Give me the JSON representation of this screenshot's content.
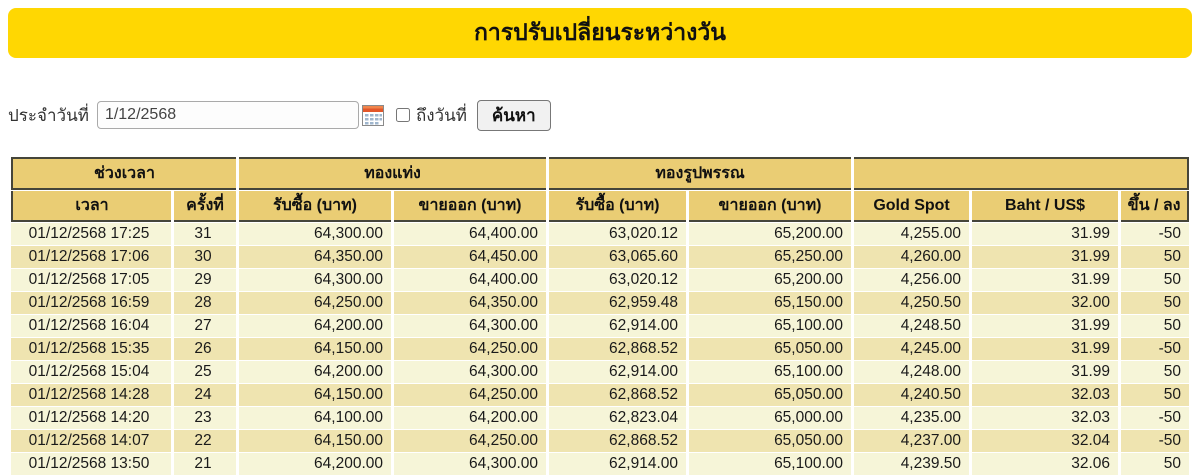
{
  "banner": {
    "title": "การปรับเปลี่ยนระหว่างวัน"
  },
  "search_form": {
    "date_label": "ประจำวันที่",
    "date_value": "1/12/2568",
    "to_date_label": "ถึงวันที่",
    "to_date_checked": false,
    "search_button_label": "ค้นหา"
  },
  "table": {
    "group_headers": [
      {
        "label": "ช่วงเวลา",
        "colspan": 2
      },
      {
        "label": "ทองแท่ง",
        "colspan": 2
      },
      {
        "label": "ทองรูปพรรณ",
        "colspan": 2
      },
      {
        "label": "",
        "colspan": 3
      }
    ],
    "columns": [
      "เวลา",
      "ครั้งที่",
      "รับซื้อ (บาท)",
      "ขายออก (บาท)",
      "รับซื้อ (บาท)",
      "ขายออก (บาท)",
      "Gold Spot",
      "Baht / US$",
      "ขึ้น / ลง"
    ],
    "rows": [
      [
        "01/12/2568 17:25",
        "31",
        "64,300.00",
        "64,400.00",
        "63,020.12",
        "65,200.00",
        "4,255.00",
        "31.99",
        "-50"
      ],
      [
        "01/12/2568 17:06",
        "30",
        "64,350.00",
        "64,450.00",
        "63,065.60",
        "65,250.00",
        "4,260.00",
        "31.99",
        "50"
      ],
      [
        "01/12/2568 17:05",
        "29",
        "64,300.00",
        "64,400.00",
        "63,020.12",
        "65,200.00",
        "4,256.00",
        "31.99",
        "50"
      ],
      [
        "01/12/2568 16:59",
        "28",
        "64,250.00",
        "64,350.00",
        "62,959.48",
        "65,150.00",
        "4,250.50",
        "32.00",
        "50"
      ],
      [
        "01/12/2568 16:04",
        "27",
        "64,200.00",
        "64,300.00",
        "62,914.00",
        "65,100.00",
        "4,248.50",
        "31.99",
        "50"
      ],
      [
        "01/12/2568 15:35",
        "26",
        "64,150.00",
        "64,250.00",
        "62,868.52",
        "65,050.00",
        "4,245.00",
        "31.99",
        "-50"
      ],
      [
        "01/12/2568 15:04",
        "25",
        "64,200.00",
        "64,300.00",
        "62,914.00",
        "65,100.00",
        "4,248.00",
        "31.99",
        "50"
      ],
      [
        "01/12/2568 14:28",
        "24",
        "64,150.00",
        "64,250.00",
        "62,868.52",
        "65,050.00",
        "4,240.50",
        "32.03",
        "50"
      ],
      [
        "01/12/2568 14:20",
        "23",
        "64,100.00",
        "64,200.00",
        "62,823.04",
        "65,000.00",
        "4,235.00",
        "32.03",
        "-50"
      ],
      [
        "01/12/2568 14:07",
        "22",
        "64,150.00",
        "64,250.00",
        "62,868.52",
        "65,050.00",
        "4,237.00",
        "32.04",
        "-50"
      ],
      [
        "01/12/2568 13:50",
        "21",
        "64,200.00",
        "64,300.00",
        "62,914.00",
        "65,100.00",
        "4,239.50",
        "32.06",
        "50"
      ]
    ]
  },
  "colors": {
    "banner_bg": "#FFD702",
    "header_cell_bg": "#EACD74",
    "row_light_bg": "#F6F5D8",
    "row_dark_bg": "#EFE4B0",
    "header_border": "#45453A",
    "calendar_icon_top": "#E2572B"
  }
}
